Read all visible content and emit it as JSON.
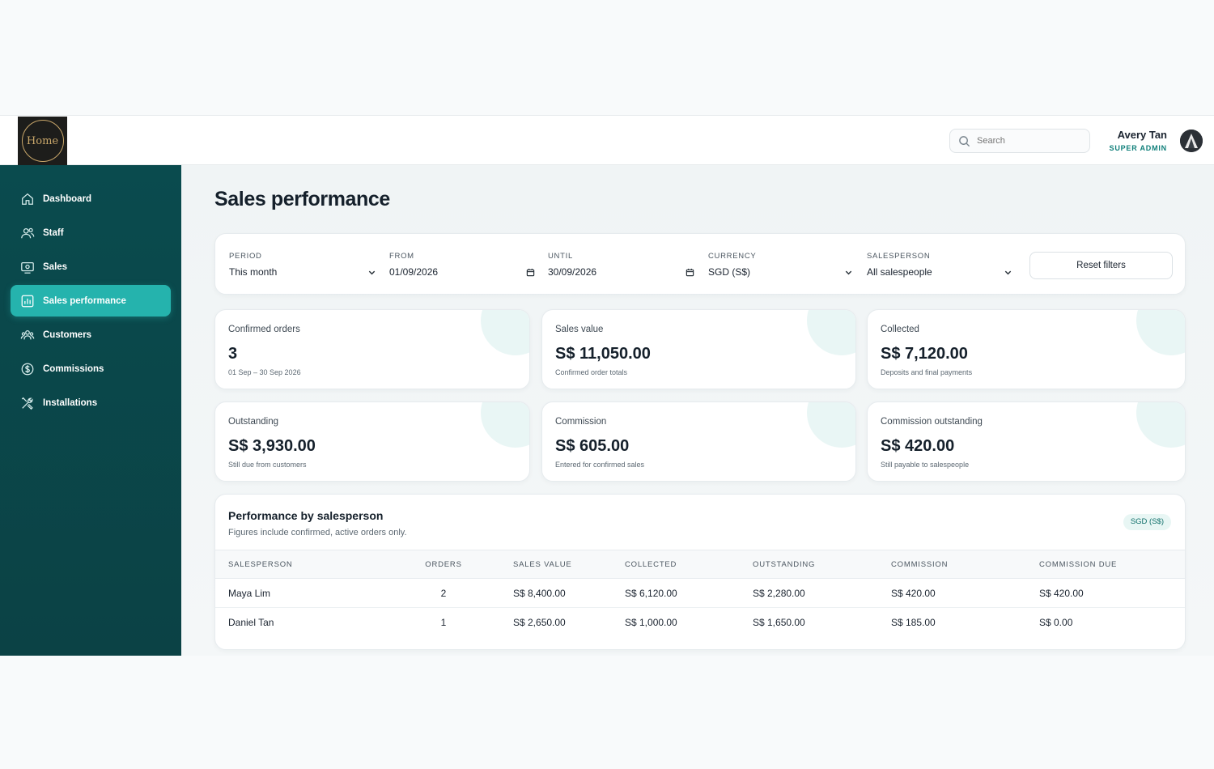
{
  "brand": {
    "logo_text": "Home"
  },
  "header": {
    "search_placeholder": "Search",
    "user_name": "Avery Tan",
    "user_role": "SUPER ADMIN"
  },
  "sidebar": {
    "items": [
      {
        "label": "Dashboard",
        "icon": "home-icon"
      },
      {
        "label": "Staff",
        "icon": "users-icon"
      },
      {
        "label": "Sales",
        "icon": "sales-icon"
      },
      {
        "label": "Sales performance",
        "icon": "chart-icon",
        "active": true
      },
      {
        "label": "Customers",
        "icon": "customers-icon"
      },
      {
        "label": "Commissions",
        "icon": "dollar-icon"
      },
      {
        "label": "Installations",
        "icon": "tools-icon"
      }
    ]
  },
  "page": {
    "title": "Sales performance"
  },
  "filters": {
    "period": {
      "label": "PERIOD",
      "value": "This month"
    },
    "from": {
      "label": "FROM",
      "value": "01/09/2026"
    },
    "until": {
      "label": "UNTIL",
      "value": "30/09/2026"
    },
    "currency": {
      "label": "CURRENCY",
      "value": "SGD (S$)"
    },
    "salesperson": {
      "label": "SALESPERSON",
      "value": "All salespeople"
    },
    "reset_label": "Reset filters"
  },
  "stats": [
    {
      "label": "Confirmed orders",
      "value": "3",
      "sub": "01 Sep – 30 Sep 2026"
    },
    {
      "label": "Sales value",
      "value": "S$ 11,050.00",
      "sub": "Confirmed order totals"
    },
    {
      "label": "Collected",
      "value": "S$ 7,120.00",
      "sub": "Deposits and final payments"
    },
    {
      "label": "Outstanding",
      "value": "S$ 3,930.00",
      "sub": "Still due from customers"
    },
    {
      "label": "Commission",
      "value": "S$ 605.00",
      "sub": "Entered for confirmed sales"
    },
    {
      "label": "Commission outstanding",
      "value": "S$ 420.00",
      "sub": "Still payable to salespeople"
    }
  ],
  "performance": {
    "title": "Performance by salesperson",
    "subtitle": "Figures include confirmed, active orders only.",
    "badge": "SGD (S$)",
    "columns": [
      "SALESPERSON",
      "ORDERS",
      "SALES VALUE",
      "COLLECTED",
      "OUTSTANDING",
      "COMMISSION",
      "COMMISSION DUE"
    ],
    "rows": [
      [
        "Maya Lim",
        "2",
        "S$ 8,400.00",
        "S$ 6,120.00",
        "S$ 2,280.00",
        "S$ 420.00",
        "S$ 420.00"
      ],
      [
        "Daniel Tan",
        "1",
        "S$ 2,650.00",
        "S$ 1,000.00",
        "S$ 1,650.00",
        "S$ 185.00",
        "S$ 0.00"
      ]
    ]
  },
  "colors": {
    "sidebar": "#0a4b4e",
    "accent": "#25b3ad",
    "role_text": "#0f7f7a"
  }
}
